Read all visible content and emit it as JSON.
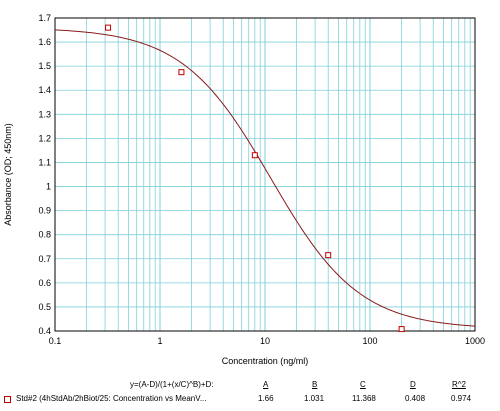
{
  "chart_data": {
    "type": "scatter",
    "xlabel": "Concentration (ng/ml)",
    "ylabel": "Absorbance (OD; 450nm)",
    "x_scale": "log",
    "xlim": [
      0.1,
      1000
    ],
    "ylim": [
      0.4,
      1.7
    ],
    "x_tick_labels": [
      "0.1",
      "1",
      "10",
      "100",
      "1000"
    ],
    "y_tick_labels": [
      "0.4",
      "0.5",
      "0.6",
      "0.7",
      "0.8",
      "0.9",
      "1",
      "1.1",
      "1.2",
      "1.3",
      "1.4",
      "1.5",
      "1.6",
      "1.7"
    ],
    "grid": true,
    "series": [
      {
        "name": "Std#2 (4hStdAb/2hBiot/25: Concentration vs MeanV...",
        "x": [
          0.32,
          1.6,
          8,
          40,
          200
        ],
        "y": [
          1.66,
          1.475,
          1.13,
          0.715,
          0.408
        ]
      }
    ],
    "fit": {
      "formula": "y=(A-D)/(1+(x/C)^B)+D:",
      "headers": [
        "A",
        "B",
        "C",
        "D",
        "R^2"
      ],
      "values": [
        "1.66",
        "1.031",
        "11.368",
        "0.408",
        "0.974"
      ],
      "A": 1.66,
      "B": 1.031,
      "C": 11.368,
      "D": 0.408
    },
    "colors": {
      "grid": "#7fd0d8",
      "marker": "#c00000",
      "curve": "#8b1a1a"
    }
  }
}
